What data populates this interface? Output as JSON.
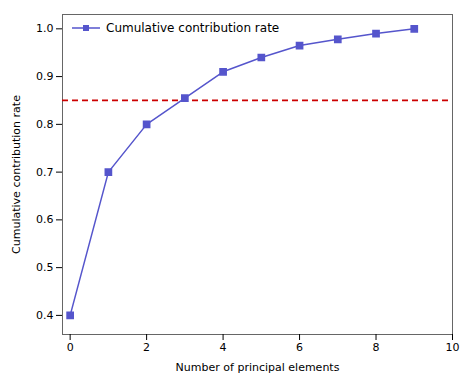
{
  "chart_data": {
    "type": "line",
    "xlabel": "Number of principal elements",
    "ylabel": "Cumulative contribution rate",
    "x": [
      0,
      1,
      2,
      3,
      4,
      5,
      6,
      7,
      8,
      9
    ],
    "series": [
      {
        "name": "Cumulative contribution rate",
        "color": "#5555cc",
        "marker": "square",
        "values": [
          0.4,
          0.7,
          0.8,
          0.855,
          0.91,
          0.94,
          0.965,
          0.978,
          0.99,
          1.0
        ]
      }
    ],
    "reference_line": {
      "y": 0.85,
      "color": "#cc0000",
      "line_style": "dashed"
    },
    "xlim": [
      -0.2,
      10
    ],
    "ylim": [
      0.36,
      1.03
    ],
    "xticks": [
      0,
      2,
      4,
      6,
      8,
      10
    ],
    "yticks": [
      0.4,
      0.5,
      0.6,
      0.7,
      0.8,
      0.9,
      {
        "value": 1.0,
        "label": "1.0"
      }
    ],
    "grid": false,
    "legend": "upper left"
  }
}
